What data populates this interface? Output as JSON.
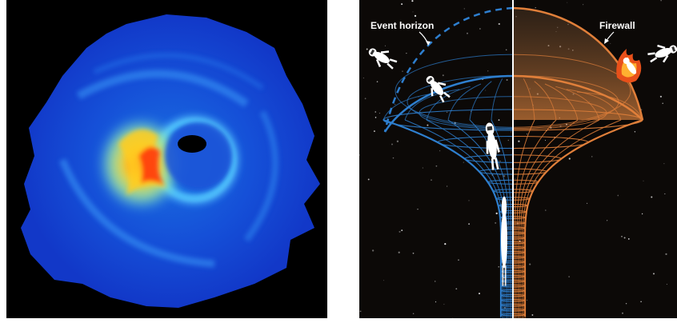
{
  "left_image": {
    "description_icon": "black-hole-accretion-disk-icon"
  },
  "right_diagram": {
    "labels": {
      "event_horizon": "Event horizon",
      "firewall": "Firewall"
    },
    "colors": {
      "event_horizon_side": "#2e7fcf",
      "firewall_side": "#e07f3a",
      "divider": "#ffffff",
      "background": "#0c0907"
    },
    "icons": [
      "astronaut-icon",
      "burning-astronaut-icon"
    ]
  }
}
